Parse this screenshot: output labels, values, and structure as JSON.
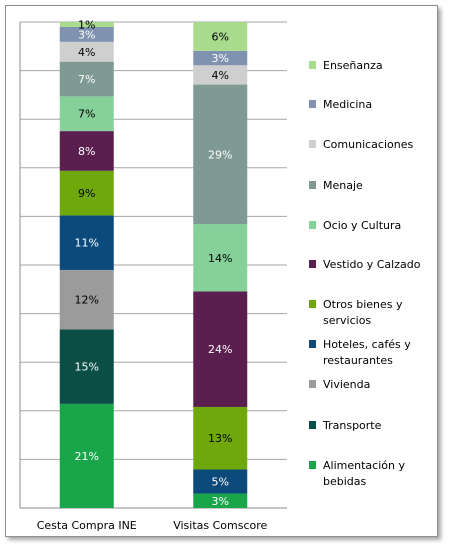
{
  "chart_data": {
    "type": "bar",
    "stacked": true,
    "percent": true,
    "categories": [
      "Cesta Compra INE",
      "Visitas Comscore"
    ],
    "ylim": [
      0,
      100
    ],
    "grid": true,
    "legend_position": "right",
    "series": [
      {
        "name": "Alimentación y bebidas",
        "legend_lines": [
          "Alimentación y",
          "bebidas"
        ],
        "color": "#19a64b",
        "label_color": "#ffffff",
        "values": [
          21,
          3
        ]
      },
      {
        "name": "Transporte",
        "legend_lines": [
          "Transporte"
        ],
        "color": "#0b4e45",
        "label_color": "#ffffff",
        "values": [
          15,
          0
        ]
      },
      {
        "name": "Hoteles, cafés y restaurantes",
        "legend_lines": [
          "Hoteles, cafés y",
          "restaurantes"
        ],
        "color": "#0d4a7c",
        "label_color": "#ffffff",
        "values": [
          11,
          5
        ]
      },
      {
        "name": "Otros bienes y servicios",
        "legend_lines": [
          "Otros bienes y",
          "servicios"
        ],
        "color": "#6ea80a",
        "label_color": "#000000",
        "values": [
          9,
          13
        ]
      },
      {
        "name": "Vivienda",
        "legend_lines": [
          "Vivienda"
        ],
        "color": "#9b9b9b",
        "label_color": "#000000",
        "values": [
          12,
          0
        ]
      },
      {
        "name": "Vestido y Calzado",
        "legend_lines": [
          "Vestido y Calzado"
        ],
        "color": "#5a1f4f",
        "label_color": "#ffffff",
        "values": [
          8,
          24
        ]
      },
      {
        "name": "Ocio y Cultura",
        "legend_lines": [
          "Ocio y Cultura"
        ],
        "color": "#86d19a",
        "label_color": "#000000",
        "values": [
          7,
          14
        ]
      },
      {
        "name": "Menaje",
        "legend_lines": [
          "Menaje"
        ],
        "color": "#7e9a93",
        "label_color": "#ffffff",
        "values": [
          7,
          29
        ]
      },
      {
        "name": "Comunicaciones",
        "legend_lines": [
          "Comunicaciones"
        ],
        "color": "#cfcfcf",
        "label_color": "#000000",
        "values": [
          4,
          4
        ]
      },
      {
        "name": "Medicina",
        "legend_lines": [
          "Medicina"
        ],
        "color": "#7f93b1",
        "label_color": "#ffffff",
        "values": [
          3,
          3
        ]
      },
      {
        "name": "Enseñanza",
        "legend_lines": [
          "Enseñanza"
        ],
        "color": "#a8db8c",
        "label_color": "#000000",
        "values": [
          1,
          6
        ]
      }
    ],
    "stack_order": [
      [
        "Alimentación y bebidas",
        "Transporte",
        "Vivienda",
        "Hoteles, cafés y restaurantes",
        "Otros bienes y servicios",
        "Vestido y Calzado",
        "Ocio y Cultura",
        "Menaje",
        "Comunicaciones",
        "Medicina",
        "Enseñanza"
      ],
      [
        "Alimentación y bebidas",
        "Hoteles, cafés y restaurantes",
        "Otros bienes y servicios",
        "Vestido y Calzado",
        "Ocio y Cultura",
        "Menaje",
        "Comunicaciones",
        "Medicina",
        "Enseñanza"
      ]
    ],
    "legend_order": [
      "Enseñanza",
      "Medicina",
      "Comunicaciones",
      "Menaje",
      "Ocio y Cultura",
      "Vestido y Calzado",
      "Otros bienes y servicios",
      "Hoteles, cafés y restaurantes",
      "Vivienda",
      "Transporte",
      "Alimentación y bebidas"
    ],
    "grid_color": "#a6a6a6",
    "axis_color": "#8e8e8e"
  }
}
